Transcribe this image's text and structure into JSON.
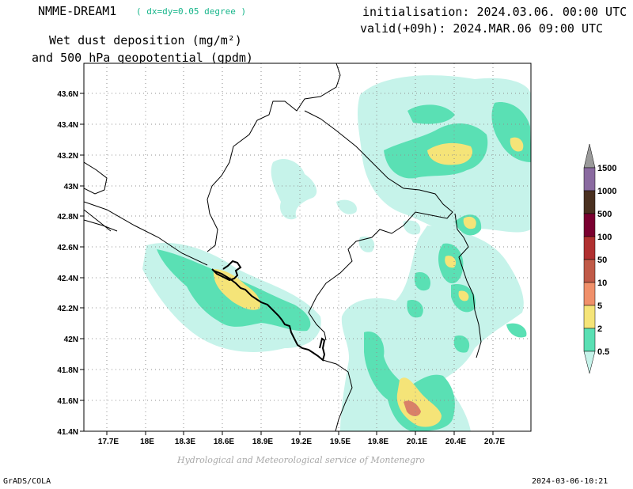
{
  "header": {
    "model": "NMME-DREAM1",
    "resolution": "( dx=dy=0.05 degree )",
    "title_line1": "Wet dust deposition (mg/m²)",
    "title_line2": "and 500 hPa geopotential (gpdm)",
    "init": "initialisation: 2024.03.06. 00:00 UTC",
    "valid": "valid(+09h): 2024.MAR.06 09:00 UTC"
  },
  "axes": {
    "lat_labels": [
      "43.6N",
      "43.4N",
      "43.2N",
      "43N",
      "42.8N",
      "42.6N",
      "42.4N",
      "42.2N",
      "42N",
      "41.8N",
      "41.6N",
      "41.4N"
    ],
    "lon_labels": [
      "17.7E",
      "18E",
      "18.3E",
      "18.6E",
      "18.9E",
      "19.2E",
      "19.5E",
      "19.8E",
      "20.1E",
      "20.4E",
      "20.7E"
    ]
  },
  "legend": {
    "labels": [
      "1500",
      "1000",
      "500",
      "100",
      "50",
      "10",
      "5",
      "2",
      "0.5"
    ],
    "colors": [
      "#8a6aa0",
      "#4a3020",
      "#7a0030",
      "#b03030",
      "#c05a48",
      "#f0906a",
      "#f5e478",
      "#5ae0b4",
      "#c6f3ea"
    ],
    "top_arrow_color": "#9a9a9a"
  },
  "footer": {
    "credit": "Hydrological and Meteorological service of Montenegro",
    "software": "GrADS/COLA",
    "timestamp": "2024-03-06-10:21"
  },
  "colors": {
    "light": "#c6f3ea",
    "green": "#5ae0b4",
    "yellow": "#f5e478",
    "salmon": "#d98068"
  }
}
